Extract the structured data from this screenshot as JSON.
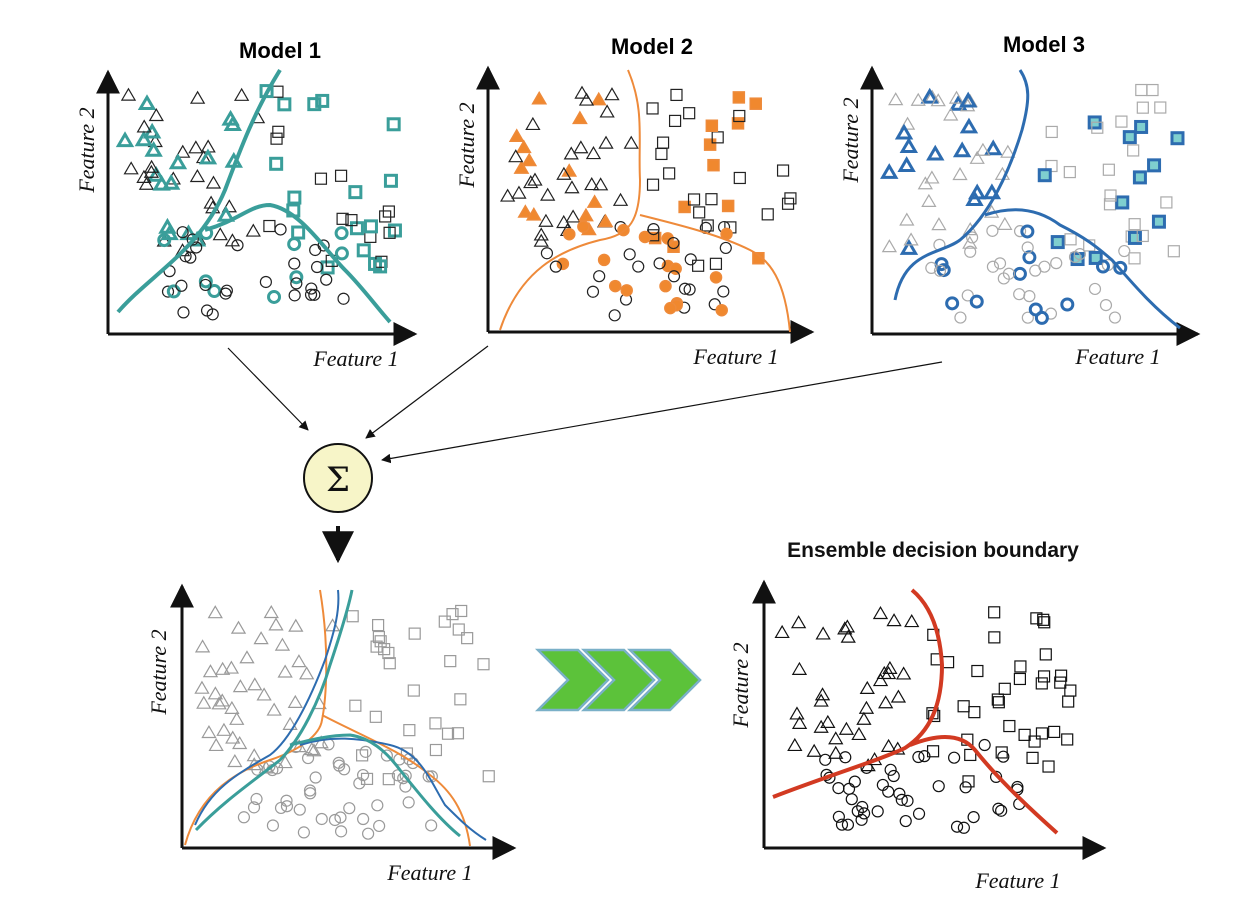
{
  "axis_labels": {
    "x": "Feature 1",
    "y": "Feature 2"
  },
  "models": [
    {
      "title": "Model 1",
      "color": "#3a9e9a"
    },
    {
      "title": "Model 2",
      "color": "#ee8a3a"
    },
    {
      "title": "Model 3",
      "color": "#99d6d6"
    }
  ],
  "combiner": {
    "symbol": "Σ",
    "fill": "#f7f5c8"
  },
  "ensemble": {
    "title": "Ensemble decision boundary",
    "boundary_color": "#d23a22"
  },
  "colors": {
    "model1": "#3a9e9a",
    "model2": "#ee8a3a",
    "model2_fill": "#f0882e",
    "model3_line": "#2d6cb0",
    "model3_square_fill": "#7fcfcf",
    "chevron_fill": "#5cc23a",
    "chevron_stroke": "#7ab0c8"
  },
  "icons": {
    "combiner": "sigma-icon",
    "transition": "triple-chevron-icon",
    "markers": [
      "triangle-marker",
      "circle-marker",
      "square-marker"
    ]
  }
}
